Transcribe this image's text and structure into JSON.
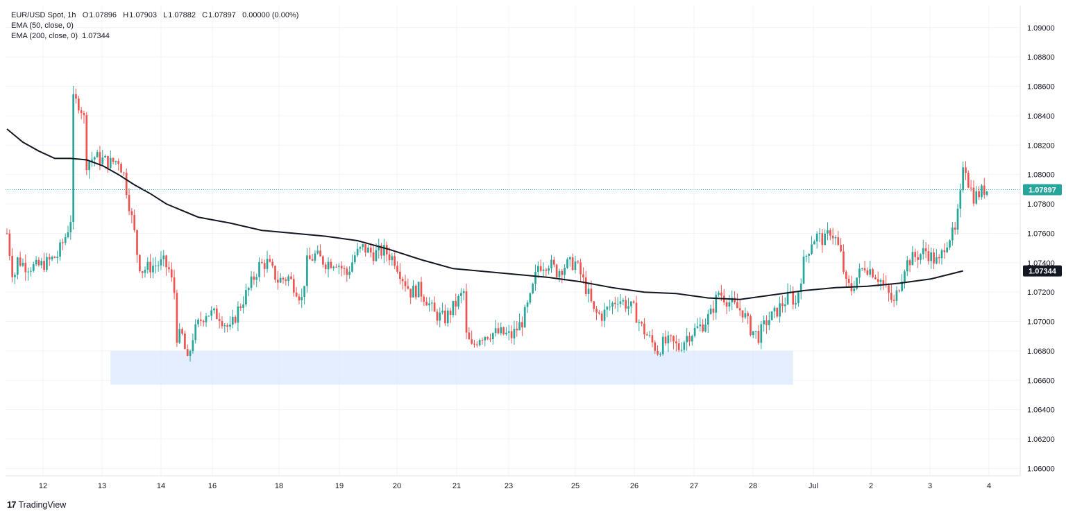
{
  "legend": {
    "symbol": "EUR/USD Spot, 1h",
    "open_label": "O",
    "open": "1.07896",
    "high_label": "H",
    "high": "1.07903",
    "low_label": "L",
    "low": "1.07882",
    "close_label": "C",
    "close": "1.07897",
    "change": "0.00000 (0.00%)",
    "ema50": "EMA (50, close, 0)",
    "ema200": "EMA (200, close, 0)",
    "ema200_value": "1.07344"
  },
  "brand": "TradingView",
  "colors": {
    "up": "#26a69a",
    "down": "#ef5350",
    "ema200": "#131722",
    "price_badge": "#26a69a",
    "ema_badge": "#131722",
    "zone": "#dbe8fd",
    "grid": "#f0f3fa"
  },
  "chart_data": {
    "type": "candlestick",
    "title": "",
    "ylim": [
      1.0595,
      1.0915
    ],
    "yticks": [
      "1.09000",
      "1.08800",
      "1.08600",
      "1.08400",
      "1.08200",
      "1.08000",
      "1.07800",
      "1.07600",
      "1.07400",
      "1.07200",
      "1.07000",
      "1.06800",
      "1.06600",
      "1.06400",
      "1.06200",
      "1.06000"
    ],
    "xticks": [
      "12",
      "13",
      "14",
      "16",
      "18",
      "19",
      "20",
      "21",
      "23",
      "25",
      "26",
      "27",
      "28",
      "Jul",
      "2",
      "3",
      "4"
    ],
    "last_price": "1.07897",
    "ema200_last": "1.07344",
    "ema200_path": [
      [
        0,
        1.0831
      ],
      [
        12,
        1.0822
      ],
      [
        24,
        1.0816
      ],
      [
        36,
        1.0811
      ],
      [
        48,
        1.0811
      ],
      [
        60,
        1.081
      ],
      [
        72,
        1.0806
      ],
      [
        84,
        1.08
      ],
      [
        96,
        1.0793
      ],
      [
        108,
        1.0787
      ],
      [
        120,
        1.078
      ],
      [
        144,
        1.0771
      ],
      [
        168,
        1.0767
      ],
      [
        192,
        1.0762
      ],
      [
        216,
        1.076
      ],
      [
        240,
        1.0758
      ],
      [
        264,
        1.0755
      ],
      [
        288,
        1.0749
      ],
      [
        312,
        1.0742
      ],
      [
        336,
        1.0736
      ],
      [
        360,
        1.0734
      ],
      [
        384,
        1.0732
      ],
      [
        408,
        1.073
      ],
      [
        432,
        1.0727
      ],
      [
        456,
        1.0723
      ],
      [
        480,
        1.072
      ],
      [
        504,
        1.0719
      ],
      [
        528,
        1.0716
      ],
      [
        552,
        1.0715
      ],
      [
        576,
        1.0718
      ],
      [
        600,
        1.0721
      ],
      [
        624,
        1.0723
      ],
      [
        648,
        1.0724
      ],
      [
        672,
        1.0726
      ],
      [
        696,
        1.0729
      ],
      [
        720,
        1.07344
      ]
    ],
    "support_zone": {
      "low": 1.0657,
      "high": 1.068,
      "from_bar": 78,
      "to_bar": 592
    },
    "price_path": [
      [
        0,
        1.076
      ],
      [
        5,
        1.0728
      ],
      [
        8,
        1.0742
      ],
      [
        14,
        1.0738
      ],
      [
        22,
        1.0737
      ],
      [
        30,
        1.074
      ],
      [
        38,
        1.0745
      ],
      [
        45,
        1.076
      ],
      [
        48,
        1.077
      ],
      [
        49,
        1.0825
      ],
      [
        50,
        1.085
      ],
      [
        55,
        1.0848
      ],
      [
        58,
        1.0838
      ],
      [
        60,
        1.0808
      ],
      [
        66,
        1.0812
      ],
      [
        72,
        1.081
      ],
      [
        78,
        1.0808
      ],
      [
        84,
        1.081
      ],
      [
        88,
        1.08
      ],
      [
        92,
        1.078
      ],
      [
        96,
        1.076
      ],
      [
        99,
        1.074
      ],
      [
        102,
        1.0735
      ],
      [
        110,
        1.0738
      ],
      [
        118,
        1.074
      ],
      [
        122,
        1.0735
      ],
      [
        126,
        1.072
      ],
      [
        128,
        1.069
      ],
      [
        132,
        1.069
      ],
      [
        136,
        1.0672
      ],
      [
        140,
        1.069
      ],
      [
        145,
        1.07
      ],
      [
        150,
        1.0706
      ],
      [
        160,
        1.0704
      ],
      [
        168,
        1.0694
      ],
      [
        174,
        1.0708
      ],
      [
        182,
        1.0722
      ],
      [
        190,
        1.0738
      ],
      [
        196,
        1.074
      ],
      [
        204,
        1.0728
      ],
      [
        212,
        1.073
      ],
      [
        218,
        1.0722
      ],
      [
        222,
        1.0715
      ],
      [
        226,
        1.074
      ],
      [
        232,
        1.0745
      ],
      [
        240,
        1.074
      ],
      [
        248,
        1.0741
      ],
      [
        256,
        1.0732
      ],
      [
        262,
        1.0745
      ],
      [
        268,
        1.075
      ],
      [
        276,
        1.0746
      ],
      [
        284,
        1.0748
      ],
      [
        292,
        1.0742
      ],
      [
        298,
        1.073
      ],
      [
        304,
        1.072
      ],
      [
        310,
        1.0722
      ],
      [
        316,
        1.0715
      ],
      [
        322,
        1.0705
      ],
      [
        330,
        1.0702
      ],
      [
        338,
        1.0712
      ],
      [
        344,
        1.072
      ],
      [
        346,
        1.069
      ],
      [
        350,
        1.0682
      ],
      [
        356,
        1.069
      ],
      [
        364,
        1.0692
      ],
      [
        372,
        1.0692
      ],
      [
        380,
        1.069
      ],
      [
        388,
        1.07
      ],
      [
        394,
        1.0715
      ],
      [
        400,
        1.0738
      ],
      [
        408,
        1.074
      ],
      [
        414,
        1.0734
      ],
      [
        420,
        1.0738
      ],
      [
        428,
        1.074
      ],
      [
        432,
        1.0732
      ],
      [
        438,
        1.0718
      ],
      [
        442,
        1.0706
      ],
      [
        448,
        1.0704
      ],
      [
        454,
        1.071
      ],
      [
        460,
        1.0716
      ],
      [
        466,
        1.0712
      ],
      [
        472,
        1.0708
      ],
      [
        478,
        1.0696
      ],
      [
        484,
        1.0688
      ],
      [
        490,
        1.068
      ],
      [
        494,
        1.0685
      ],
      [
        500,
        1.0686
      ],
      [
        506,
        1.0682
      ],
      [
        512,
        1.069
      ],
      [
        518,
        1.0694
      ],
      [
        524,
        1.0698
      ],
      [
        530,
        1.0705
      ],
      [
        536,
        1.072
      ],
      [
        542,
        1.0715
      ],
      [
        548,
        1.071
      ],
      [
        554,
        1.0707
      ],
      [
        560,
        1.0695
      ],
      [
        566,
        1.069
      ],
      [
        572,
        1.07
      ],
      [
        578,
        1.0705
      ],
      [
        584,
        1.0712
      ],
      [
        590,
        1.0718
      ],
      [
        594,
        1.0712
      ],
      [
        600,
        1.074
      ],
      [
        606,
        1.0755
      ],
      [
        610,
        1.0758
      ],
      [
        616,
        1.0755
      ],
      [
        620,
        1.0762
      ],
      [
        624,
        1.0756
      ],
      [
        628,
        1.0745
      ],
      [
        632,
        1.0725
      ],
      [
        636,
        1.0722
      ],
      [
        640,
        1.073
      ],
      [
        646,
        1.0738
      ],
      [
        652,
        1.0734
      ],
      [
        658,
        1.0728
      ],
      [
        664,
        1.0718
      ],
      [
        668,
        1.0712
      ],
      [
        672,
        1.0725
      ],
      [
        676,
        1.0738
      ],
      [
        680,
        1.0742
      ],
      [
        686,
        1.0745
      ],
      [
        692,
        1.0748
      ],
      [
        698,
        1.0742
      ],
      [
        702,
        1.074
      ],
      [
        706,
        1.0752
      ],
      [
        710,
        1.0758
      ],
      [
        714,
        1.076
      ],
      [
        718,
        1.0785
      ],
      [
        720,
        1.0808
      ],
      [
        722,
        1.0805
      ],
      [
        724,
        1.0795
      ],
      [
        728,
        1.0785
      ],
      [
        732,
        1.0787
      ],
      [
        736,
        1.07897
      ]
    ]
  }
}
